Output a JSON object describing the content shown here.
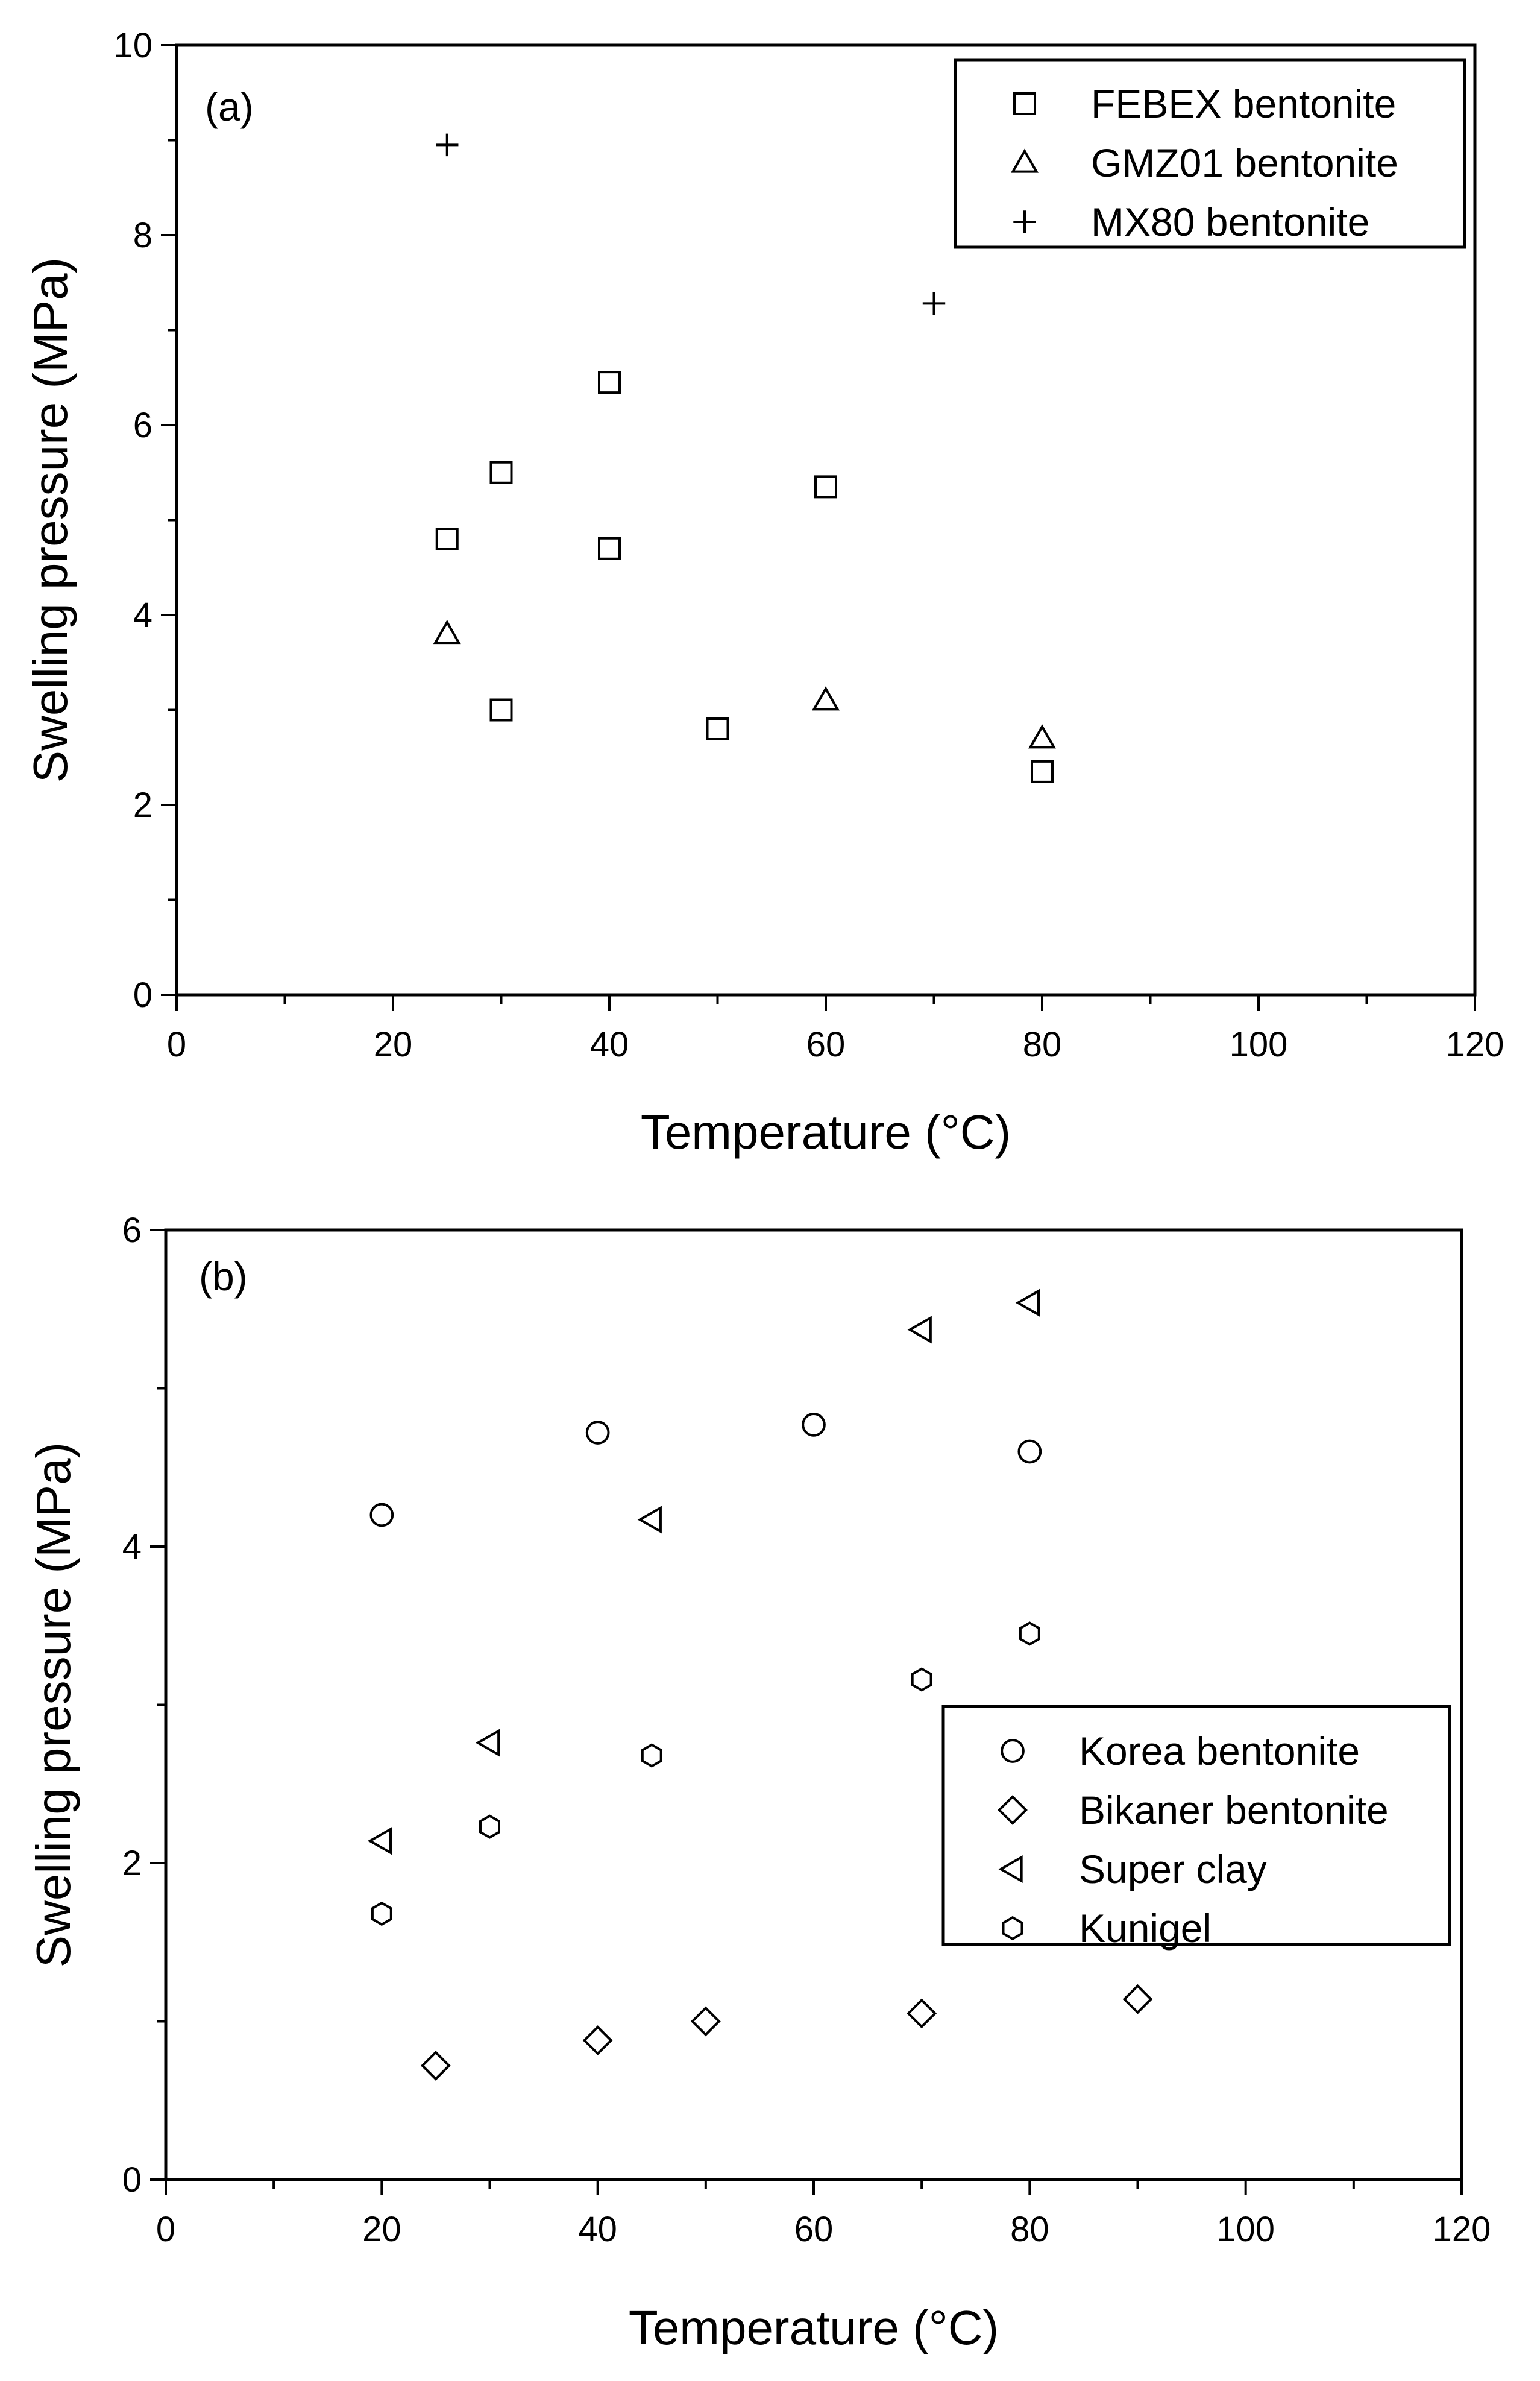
{
  "chart_data": [
    {
      "type": "scatter",
      "panel_label": "(a)",
      "xlabel": "Temperature (°C)",
      "ylabel": "Swelling pressure (MPa)",
      "xlim": [
        0,
        120
      ],
      "ylim": [
        0,
        10
      ],
      "x_ticks": [
        0,
        20,
        40,
        60,
        80,
        100,
        120
      ],
      "y_ticks": [
        0,
        2,
        4,
        6,
        8,
        10
      ],
      "legend_position": "top-right",
      "series": [
        {
          "name": "FEBEX bentonite",
          "marker": "square",
          "x": [
            25,
            30,
            30,
            40,
            40,
            50,
            60,
            80
          ],
          "y": [
            4.8,
            5.5,
            3.0,
            6.45,
            4.7,
            2.8,
            5.35,
            2.35
          ]
        },
        {
          "name": "GMZ01 bentonite",
          "marker": "triangle-up",
          "x": [
            25,
            60,
            80
          ],
          "y": [
            3.8,
            3.1,
            2.7
          ]
        },
        {
          "name": "MX80 bentonite",
          "marker": "plus",
          "x": [
            25,
            70
          ],
          "y": [
            8.95,
            7.28
          ]
        }
      ]
    },
    {
      "type": "scatter",
      "panel_label": "(b)",
      "xlabel": "Temperature (°C)",
      "ylabel": "Swelling pressure (MPa)",
      "xlim": [
        0,
        120
      ],
      "ylim": [
        0,
        6
      ],
      "x_ticks": [
        0,
        20,
        40,
        60,
        80,
        100,
        120
      ],
      "y_ticks": [
        0,
        2,
        4,
        6
      ],
      "legend_position": "center-right",
      "series": [
        {
          "name": "Korea bentonite",
          "marker": "circle",
          "x": [
            20,
            40,
            60,
            80
          ],
          "y": [
            4.2,
            4.72,
            4.77,
            4.6
          ]
        },
        {
          "name": "Bikaner bentonite",
          "marker": "diamond",
          "x": [
            25,
            40,
            50,
            70,
            90
          ],
          "y": [
            0.72,
            0.88,
            1.0,
            1.05,
            1.14
          ]
        },
        {
          "name": "Super clay",
          "marker": "triangle-left",
          "x": [
            20,
            30,
            45,
            70,
            80
          ],
          "y": [
            2.14,
            2.76,
            4.17,
            5.37,
            5.54
          ]
        },
        {
          "name": "Kunigel",
          "marker": "hexagon",
          "x": [
            20,
            30,
            45,
            70,
            80
          ],
          "y": [
            1.68,
            2.23,
            2.68,
            3.16,
            3.45
          ]
        }
      ]
    }
  ]
}
